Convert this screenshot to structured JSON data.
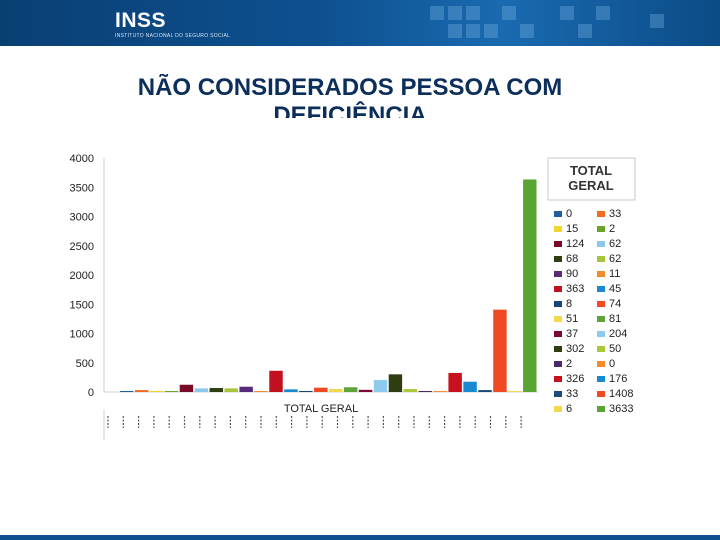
{
  "header": {
    "brand": "INSS",
    "subtitle": "INSTITUTO NACIONAL DO SEGURO SOCIAL"
  },
  "slide_title": "NÃO CONSIDERADOS PESSOA COM DEFICIÊNCIA",
  "colors": {
    "title": "#0b2f5a",
    "banner": "#0d5190"
  },
  "chart_data": {
    "type": "bar",
    "xlabel": "TOTAL GERAL",
    "ylim": [
      0,
      4000
    ],
    "yticks": [
      0,
      500,
      1000,
      1500,
      2000,
      2500,
      3000,
      3500,
      4000
    ],
    "grid": false,
    "legend": {
      "title": "TOTAL GERAL",
      "placement": "right"
    },
    "series": [
      {
        "value": 0,
        "color": "#1f5f9f"
      },
      {
        "value": 33,
        "color": "#f26b21"
      },
      {
        "value": 15,
        "color": "#f5d42c"
      },
      {
        "value": 2,
        "color": "#6aa32a"
      },
      {
        "value": 124,
        "color": "#7a0a26"
      },
      {
        "value": 62,
        "color": "#8cc8ea"
      },
      {
        "value": 68,
        "color": "#2e3f12"
      },
      {
        "value": 62,
        "color": "#a5c53a"
      },
      {
        "value": 90,
        "color": "#5a2a7a"
      },
      {
        "value": 11,
        "color": "#f28a2e"
      },
      {
        "value": 363,
        "color": "#c21021"
      },
      {
        "value": 45,
        "color": "#1a8ad0"
      },
      {
        "value": 8,
        "color": "#17457a"
      },
      {
        "value": 74,
        "color": "#f04a24"
      },
      {
        "value": 51,
        "color": "#f2d84a"
      },
      {
        "value": 81,
        "color": "#5fa33a"
      },
      {
        "value": 37,
        "color": "#7a0a35"
      },
      {
        "value": 204,
        "color": "#8ccaf0"
      },
      {
        "value": 302,
        "color": "#2f3e12"
      },
      {
        "value": 50,
        "color": "#a7c93a"
      },
      {
        "value": 2,
        "color": "#4a2a6a"
      },
      {
        "value": 0,
        "color": "#f58a2e"
      },
      {
        "value": 326,
        "color": "#c8101f"
      },
      {
        "value": 176,
        "color": "#1a8ad0"
      },
      {
        "value": 33,
        "color": "#1c4a7e"
      },
      {
        "value": 1408,
        "color": "#f04a24"
      },
      {
        "value": 6,
        "color": "#f2d84a"
      },
      {
        "value": 3633,
        "color": "#5aa532"
      }
    ]
  }
}
